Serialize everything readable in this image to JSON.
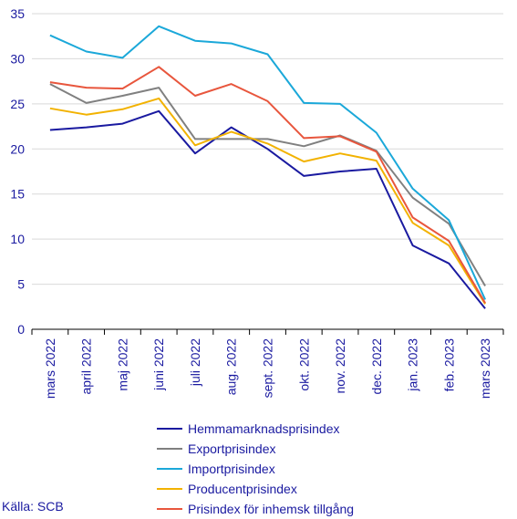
{
  "chart_data": {
    "type": "line",
    "categories": [
      "mars 2022",
      "april 2022",
      "maj 2022",
      "juni 2022",
      "juli 2022",
      "aug. 2022",
      "sept. 2022",
      "okt. 2022",
      "nov. 2022",
      "dec. 2022",
      "jan. 2023",
      "feb. 2023",
      "mars 2023"
    ],
    "ylim": [
      0,
      35
    ],
    "yticks": [
      0,
      5,
      10,
      15,
      20,
      25,
      30,
      35
    ],
    "grid": "horizontal",
    "legend_position": "bottom",
    "series": [
      {
        "name": "Hemmamarknadsprisindex",
        "color": "#1a1aa0",
        "values": [
          22.1,
          22.4,
          22.8,
          24.2,
          19.5,
          22.4,
          20.0,
          17.0,
          17.5,
          17.8,
          9.3,
          7.3,
          2.3
        ]
      },
      {
        "name": "Exportprisindex",
        "color": "#808080",
        "values": [
          27.2,
          25.1,
          25.9,
          26.8,
          21.1,
          21.1,
          21.1,
          20.3,
          21.5,
          19.8,
          14.6,
          11.7,
          4.8
        ]
      },
      {
        "name": "Importprisindex",
        "color": "#1ba8d9",
        "values": [
          32.6,
          30.8,
          30.1,
          33.6,
          32.0,
          31.7,
          30.5,
          25.1,
          25.0,
          21.8,
          15.6,
          12.1,
          3.3
        ]
      },
      {
        "name": "Producentprisindex",
        "color": "#f2b200",
        "values": [
          24.5,
          23.8,
          24.4,
          25.6,
          20.4,
          21.9,
          20.6,
          18.6,
          19.5,
          18.7,
          11.8,
          9.3,
          2.8
        ]
      },
      {
        "name": "Prisindex för inhemsk tillgång",
        "color": "#e8563d",
        "values": [
          27.4,
          26.8,
          26.7,
          29.1,
          25.9,
          27.2,
          25.3,
          21.2,
          21.4,
          19.7,
          12.4,
          9.8,
          2.9
        ]
      }
    ]
  },
  "source_text": "Källa: SCB"
}
